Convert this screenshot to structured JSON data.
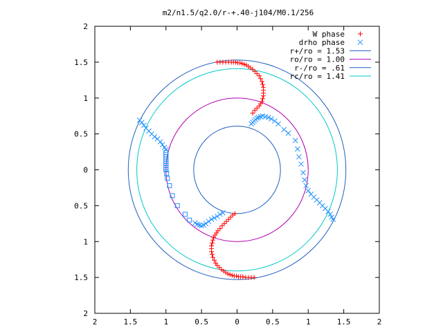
{
  "chart_data": {
    "type": "scatter",
    "title": "m2/n1.5/q2.0/r-+.40-j104/M0.1/256",
    "xlabel": "",
    "ylabel": "",
    "xlim": [
      -2,
      2
    ],
    "ylim": [
      -2,
      2
    ],
    "grid": false,
    "legend_position": "top-right",
    "x_tick_values": [
      -2,
      -1.5,
      -1,
      -0.5,
      0,
      0.5,
      1,
      1.5,
      2
    ],
    "x_tick_labels": [
      "2",
      "1.5",
      "1",
      "0.5",
      "0",
      "0.5",
      "1",
      "1.5",
      "2"
    ],
    "y_tick_values": [
      2,
      1.5,
      1,
      0.5,
      0,
      -0.5,
      -1,
      -1.5,
      -2
    ],
    "y_tick_labels": [
      "2",
      "1.5",
      "1",
      "0.5",
      "0",
      "0.5",
      "1",
      "1.5",
      "2"
    ],
    "circles": [
      {
        "name": "r+/ro = 1.53",
        "radius": 1.53,
        "color": "#1f5fbf"
      },
      {
        "name": "ro/ro = 1.00",
        "radius": 1.0,
        "color": "#b000b0"
      },
      {
        "name": "r-/ro = .61",
        "radius": 0.61,
        "color": "#1f5fbf"
      },
      {
        "name": "rc/ro = 1.41",
        "radius": 1.41,
        "color": "#00c8c8"
      }
    ],
    "series": [
      {
        "name": "W phase",
        "marker": "plus",
        "color": "#ff0000",
        "points": [
          [
            -0.28,
            1.5
          ],
          [
            -0.24,
            1.5
          ],
          [
            -0.2,
            1.5
          ],
          [
            -0.16,
            1.5
          ],
          [
            -0.12,
            1.5
          ],
          [
            -0.08,
            1.5
          ],
          [
            -0.05,
            1.5
          ],
          [
            -0.02,
            1.5
          ],
          [
            0.01,
            1.49
          ],
          [
            0.04,
            1.49
          ],
          [
            0.07,
            1.48
          ],
          [
            0.1,
            1.47
          ],
          [
            0.13,
            1.46
          ],
          [
            0.16,
            1.44
          ],
          [
            0.19,
            1.42
          ],
          [
            0.22,
            1.4
          ],
          [
            0.25,
            1.37
          ],
          [
            0.28,
            1.34
          ],
          [
            0.31,
            1.31
          ],
          [
            0.33,
            1.27
          ],
          [
            0.35,
            1.23
          ],
          [
            0.36,
            1.19
          ],
          [
            0.37,
            1.15
          ],
          [
            0.37,
            1.11
          ],
          [
            0.37,
            1.07
          ],
          [
            0.37,
            1.03
          ],
          [
            0.36,
            0.99
          ],
          [
            0.35,
            0.95
          ],
          [
            0.33,
            0.92
          ],
          [
            0.31,
            0.89
          ],
          [
            0.28,
            0.86
          ],
          [
            0.25,
            0.83
          ],
          [
            0.22,
            0.79
          ],
          [
            0.24,
            -1.5
          ],
          [
            0.2,
            -1.5
          ],
          [
            0.16,
            -1.5
          ],
          [
            0.12,
            -1.5
          ],
          [
            0.08,
            -1.49
          ],
          [
            0.05,
            -1.49
          ],
          [
            0.02,
            -1.49
          ],
          [
            -0.01,
            -1.48
          ],
          [
            -0.04,
            -1.48
          ],
          [
            -0.07,
            -1.47
          ],
          [
            -0.1,
            -1.46
          ],
          [
            -0.13,
            -1.45
          ],
          [
            -0.16,
            -1.43
          ],
          [
            -0.19,
            -1.41
          ],
          [
            -0.22,
            -1.39
          ],
          [
            -0.25,
            -1.36
          ],
          [
            -0.28,
            -1.33
          ],
          [
            -0.3,
            -1.3
          ],
          [
            -0.32,
            -1.26
          ],
          [
            -0.34,
            -1.22
          ],
          [
            -0.35,
            -1.18
          ],
          [
            -0.36,
            -1.14
          ],
          [
            -0.36,
            -1.1
          ],
          [
            -0.36,
            -1.06
          ],
          [
            -0.35,
            -1.02
          ],
          [
            -0.34,
            -0.98
          ],
          [
            -0.33,
            -0.94
          ],
          [
            -0.31,
            -0.91
          ],
          [
            -0.29,
            -0.88
          ],
          [
            -0.27,
            -0.85
          ],
          [
            -0.24,
            -0.82
          ],
          [
            -0.21,
            -0.78
          ],
          [
            -0.18,
            -0.75
          ],
          [
            -0.15,
            -0.72
          ],
          [
            -0.12,
            -0.69
          ],
          [
            -0.09,
            -0.66
          ],
          [
            -0.06,
            -0.63
          ],
          [
            -0.03,
            -0.61
          ]
        ]
      },
      {
        "name": "drho phase",
        "marker": "x",
        "color": "#1e90ff",
        "points": [
          [
            0.2,
            0.64
          ],
          [
            0.22,
            0.66
          ],
          [
            0.24,
            0.68
          ],
          [
            0.26,
            0.7
          ],
          [
            0.28,
            0.72
          ],
          [
            0.3,
            0.73
          ],
          [
            0.33,
            0.74
          ],
          [
            0.36,
            0.75
          ],
          [
            0.4,
            0.74
          ],
          [
            0.44,
            0.73
          ],
          [
            0.48,
            0.71
          ],
          [
            0.53,
            0.68
          ],
          [
            0.58,
            0.64
          ],
          [
            0.66,
            0.56
          ],
          [
            0.72,
            0.51
          ],
          [
            0.82,
            0.41
          ],
          [
            0.85,
            0.29
          ],
          [
            0.87,
            0.18
          ],
          [
            0.9,
            0.08
          ],
          [
            0.93,
            -0.04
          ],
          [
            0.95,
            -0.14
          ],
          [
            0.97,
            -0.22
          ],
          [
            1.0,
            -0.29
          ],
          [
            1.04,
            -0.34
          ],
          [
            1.08,
            -0.38
          ],
          [
            1.12,
            -0.42
          ],
          [
            1.16,
            -0.46
          ],
          [
            1.2,
            -0.5
          ],
          [
            1.24,
            -0.54
          ],
          [
            1.28,
            -0.58
          ],
          [
            1.31,
            -0.62
          ],
          [
            1.33,
            -0.66
          ],
          [
            1.35,
            -0.69
          ],
          [
            -1.37,
            0.69
          ],
          [
            -1.34,
            0.66
          ],
          [
            -1.31,
            0.62
          ],
          [
            -1.28,
            0.58
          ],
          [
            -1.24,
            0.54
          ],
          [
            -1.2,
            0.5
          ],
          [
            -1.16,
            0.46
          ],
          [
            -1.12,
            0.43
          ],
          [
            -1.08,
            0.39
          ],
          [
            -1.05,
            0.35
          ],
          [
            -1.02,
            0.31
          ],
          [
            -1.0,
            0.28
          ],
          [
            -0.59,
            -0.74
          ],
          [
            -0.56,
            -0.76
          ],
          [
            -0.53,
            -0.77
          ],
          [
            -0.5,
            -0.78
          ],
          [
            -0.47,
            -0.77
          ],
          [
            -0.44,
            -0.75
          ],
          [
            -0.4,
            -0.72
          ],
          [
            -0.36,
            -0.69
          ],
          [
            -0.32,
            -0.67
          ],
          [
            -0.28,
            -0.65
          ],
          [
            -0.24,
            -0.62
          ],
          [
            -0.2,
            -0.6
          ]
        ]
      },
      {
        "name": "",
        "marker": "square",
        "color": "#1e90ff",
        "points": [
          [
            -1.0,
            0.24
          ],
          [
            -1.0,
            0.21
          ],
          [
            -1.0,
            0.18
          ],
          [
            -1.0,
            0.15
          ],
          [
            -1.0,
            0.12
          ],
          [
            -1.0,
            0.09
          ],
          [
            -1.0,
            0.06
          ],
          [
            -1.0,
            0.03
          ],
          [
            -1.0,
            0.0
          ],
          [
            -0.99,
            -0.05
          ],
          [
            -0.98,
            -0.12
          ],
          [
            -0.95,
            -0.22
          ],
          [
            -0.91,
            -0.36
          ],
          [
            -0.84,
            -0.5
          ],
          [
            -0.73,
            -0.62
          ],
          [
            -0.67,
            -0.7
          ]
        ]
      }
    ]
  }
}
